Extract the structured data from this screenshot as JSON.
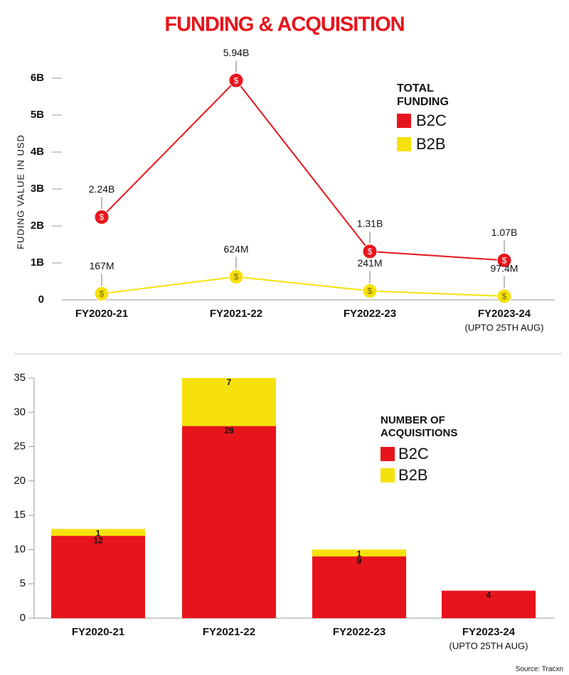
{
  "title": "FUNDING & ACQUISITION",
  "source": "Source: Tracxn",
  "chart_data": [
    {
      "type": "line",
      "ylabel": "FUDING VALUE IN USD",
      "categories": [
        "FY2020-21",
        "FY2021-22",
        "FY2022-23",
        "FY2023-24"
      ],
      "category_notes": [
        null,
        null,
        null,
        "(UPTO 25TH AUG)"
      ],
      "ylim": [
        0,
        6
      ],
      "yticks": [
        0,
        {
          "value": 1,
          "label": "1B"
        },
        {
          "value": 2,
          "label": "2B"
        },
        {
          "value": 3,
          "label": "3B"
        },
        {
          "value": 4,
          "label": "4B"
        },
        {
          "value": 5,
          "label": "5B"
        },
        {
          "value": 6,
          "label": "6B"
        }
      ],
      "legend_title": "TOTAL FUNDING",
      "marker_symbol": "$",
      "series": [
        {
          "name": "B2C",
          "color": "#e8141b",
          "values": [
            2.24,
            5.94,
            1.31,
            1.07
          ],
          "value_labels": [
            "2.24B",
            "5.94B",
            "1.31B",
            "1.07B"
          ]
        },
        {
          "name": "B2B",
          "color": "#f7e10a",
          "values": [
            0.167,
            0.624,
            0.241,
            0.0974
          ],
          "value_labels": [
            "167M",
            "624M",
            "241M",
            "97.4M"
          ]
        }
      ]
    },
    {
      "type": "stacked_bar",
      "categories": [
        "FY2020-21",
        "FY2021-22",
        "FY2022-23",
        "FY2023-24"
      ],
      "category_notes": [
        null,
        null,
        null,
        "(UPTO 25TH AUG)"
      ],
      "ylim": [
        0,
        35
      ],
      "yticks": [
        0,
        5,
        10,
        15,
        20,
        25,
        30,
        35
      ],
      "legend_title": "NUMBER OF ACQUISITIONS",
      "series": [
        {
          "name": "B2C",
          "color": "#e8141b",
          "values": [
            12,
            28,
            9,
            4
          ]
        },
        {
          "name": "B2B",
          "color": "#f7e10a",
          "values": [
            1,
            7,
            1,
            null
          ]
        }
      ]
    }
  ]
}
